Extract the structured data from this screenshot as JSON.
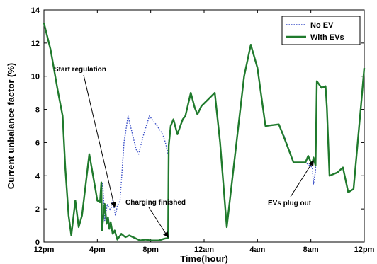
{
  "chart_data": {
    "type": "line",
    "xlabel": "Time(hour)",
    "ylabel": "Current unbalance factor (%)",
    "xlim": [
      0,
      24
    ],
    "ylim": [
      0,
      14
    ],
    "x_ticks": [
      {
        "value": 0,
        "label": "12pm"
      },
      {
        "value": 4,
        "label": "4pm"
      },
      {
        "value": 8,
        "label": "8pm"
      },
      {
        "value": 12,
        "label": "12am"
      },
      {
        "value": 16,
        "label": "4am"
      },
      {
        "value": 20,
        "label": "8am"
      },
      {
        "value": 24,
        "label": "12pm"
      }
    ],
    "y_ticks": [
      0,
      2,
      4,
      6,
      8,
      10,
      12,
      14
    ],
    "legend_position": "top-right",
    "series": [
      {
        "name": "No EV",
        "color": "#3a4fc7",
        "style": "dotted",
        "points": [
          [
            0,
            13.2
          ],
          [
            0.5,
            11.6
          ],
          [
            1,
            9.3
          ],
          [
            1.4,
            7.6
          ],
          [
            1.6,
            4.5
          ],
          [
            1.85,
            1.6
          ],
          [
            2.05,
            0.4
          ],
          [
            2.35,
            2.5
          ],
          [
            2.6,
            0.9
          ],
          [
            2.85,
            1.6
          ],
          [
            3.4,
            5.3
          ],
          [
            3.9,
            3.0
          ],
          [
            4.0,
            2.5
          ],
          [
            4.2,
            2.4
          ],
          [
            4.4,
            3.6
          ],
          [
            4.55,
            1.3
          ],
          [
            4.75,
            2.3
          ],
          [
            5.0,
            1.9
          ],
          [
            5.15,
            2.6
          ],
          [
            5.35,
            1.6
          ],
          [
            5.5,
            2.2
          ],
          [
            5.7,
            2.5
          ],
          [
            6.0,
            6.0
          ],
          [
            6.3,
            7.6
          ],
          [
            6.9,
            5.6
          ],
          [
            7.1,
            5.3
          ],
          [
            7.4,
            6.3
          ],
          [
            7.9,
            7.6
          ],
          [
            8.4,
            7.1
          ],
          [
            8.9,
            6.5
          ],
          [
            9.1,
            6.0
          ],
          [
            9.3,
            5.3
          ],
          [
            9.35,
            6.0
          ],
          [
            9.5,
            7.0
          ],
          [
            9.7,
            7.4
          ],
          [
            10.0,
            6.5
          ],
          [
            10.4,
            7.4
          ],
          [
            10.6,
            7.6
          ],
          [
            11.0,
            9.0
          ],
          [
            11.3,
            8.1
          ],
          [
            11.5,
            7.7
          ],
          [
            11.8,
            8.2
          ],
          [
            12.8,
            9.0
          ],
          [
            13.2,
            6.0
          ],
          [
            13.7,
            0.9
          ],
          [
            15.0,
            10.0
          ],
          [
            15.5,
            11.9
          ],
          [
            16.0,
            10.5
          ],
          [
            16.6,
            7.0
          ],
          [
            17.6,
            7.1
          ],
          [
            18.0,
            6.4
          ],
          [
            18.7,
            4.8
          ],
          [
            19.6,
            4.8
          ],
          [
            20.1,
            4.5
          ],
          [
            20.2,
            3.5
          ],
          [
            20.35,
            4.3
          ],
          [
            20.45,
            9.7
          ],
          [
            20.8,
            9.3
          ],
          [
            21.1,
            9.4
          ],
          [
            21.2,
            8.1
          ],
          [
            21.4,
            4.0
          ],
          [
            22.0,
            4.2
          ],
          [
            22.4,
            4.5
          ],
          [
            22.8,
            3.0
          ],
          [
            23.2,
            3.2
          ],
          [
            23.8,
            8.6
          ],
          [
            24,
            10.5
          ]
        ]
      },
      {
        "name": "With EVs",
        "color": "#1f7a2c",
        "style": "solid",
        "points": [
          [
            0,
            13.2
          ],
          [
            0.5,
            11.6
          ],
          [
            1,
            9.3
          ],
          [
            1.4,
            7.6
          ],
          [
            1.6,
            4.5
          ],
          [
            1.85,
            1.6
          ],
          [
            2.05,
            0.4
          ],
          [
            2.35,
            2.5
          ],
          [
            2.6,
            0.9
          ],
          [
            2.85,
            1.6
          ],
          [
            3.4,
            5.3
          ],
          [
            3.9,
            3.0
          ],
          [
            4.0,
            2.5
          ],
          [
            4.2,
            2.4
          ],
          [
            4.3,
            3.6
          ],
          [
            4.35,
            0.7
          ],
          [
            4.55,
            2.3
          ],
          [
            4.7,
            1.1
          ],
          [
            4.8,
            1.5
          ],
          [
            4.9,
            0.8
          ],
          [
            5.0,
            1.2
          ],
          [
            5.15,
            0.5
          ],
          [
            5.3,
            0.7
          ],
          [
            5.5,
            0.15
          ],
          [
            5.8,
            0.5
          ],
          [
            6.1,
            0.3
          ],
          [
            6.4,
            0.4
          ],
          [
            6.8,
            0.25
          ],
          [
            7.2,
            0.1
          ],
          [
            7.6,
            0.15
          ],
          [
            8.0,
            0.1
          ],
          [
            8.6,
            0.1
          ],
          [
            9.0,
            0.2
          ],
          [
            9.3,
            0.25
          ],
          [
            9.35,
            5.8
          ],
          [
            9.5,
            7.0
          ],
          [
            9.7,
            7.4
          ],
          [
            10.0,
            6.5
          ],
          [
            10.4,
            7.4
          ],
          [
            10.6,
            7.6
          ],
          [
            11.0,
            9.0
          ],
          [
            11.3,
            8.1
          ],
          [
            11.5,
            7.7
          ],
          [
            11.8,
            8.2
          ],
          [
            12.8,
            9.0
          ],
          [
            13.2,
            6.0
          ],
          [
            13.7,
            0.9
          ],
          [
            15.0,
            10.0
          ],
          [
            15.5,
            11.9
          ],
          [
            16.0,
            10.5
          ],
          [
            16.6,
            7.0
          ],
          [
            17.6,
            7.1
          ],
          [
            18.0,
            6.3
          ],
          [
            18.7,
            4.8
          ],
          [
            19.6,
            4.8
          ],
          [
            19.8,
            5.2
          ],
          [
            19.95,
            4.9
          ],
          [
            20.1,
            4.7
          ],
          [
            20.2,
            5.1
          ],
          [
            20.35,
            4.6
          ],
          [
            20.45,
            9.7
          ],
          [
            20.8,
            9.3
          ],
          [
            21.1,
            9.4
          ],
          [
            21.2,
            8.1
          ],
          [
            21.4,
            4.0
          ],
          [
            22.0,
            4.2
          ],
          [
            22.4,
            4.5
          ],
          [
            22.8,
            3.0
          ],
          [
            23.2,
            3.2
          ],
          [
            23.8,
            8.6
          ],
          [
            24,
            10.5
          ]
        ]
      }
    ],
    "annotations": [
      {
        "text": "Start regulation",
        "arrow_to": [
          5.3,
          2.1
        ]
      },
      {
        "text": "Charging finished",
        "arrow_to": [
          9.3,
          0.3
        ]
      },
      {
        "text": "EVs plug out",
        "arrow_to": [
          20.2,
          4.9
        ]
      }
    ]
  }
}
